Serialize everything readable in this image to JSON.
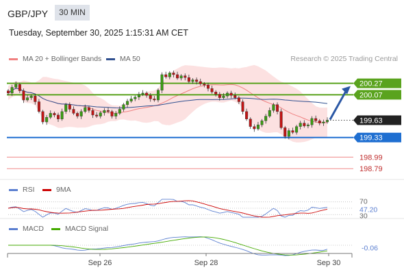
{
  "header": {
    "symbol": "GBP/JPY",
    "timeframe": "30 MIN",
    "timestamp": "Tuesday, September 30, 2025 1:15:31 AM CET"
  },
  "legend": {
    "ma20": {
      "label": "MA 20 + Bollinger Bands",
      "color": "#f08080"
    },
    "ma50": {
      "label": "MA 50",
      "color": "#2f4f8f"
    },
    "rsi": {
      "label": "RSI",
      "color": "#5b7fd0"
    },
    "rsi9": {
      "label": "9MA",
      "color": "#cc0000"
    },
    "macd": {
      "label": "MACD",
      "color": "#5b7fd0"
    },
    "macd_signal": {
      "label": "MACD Signal",
      "color": "#44aa00"
    }
  },
  "copyright": "Research © 2025 Trading Central",
  "chart_data": {
    "type": "candlestick",
    "price": {
      "ylim": [
        198.65,
        200.55
      ],
      "current": "199.63",
      "levels": [
        {
          "value": 200.27,
          "label": "200.27",
          "kind": "resistance",
          "color": "#5aa31e"
        },
        {
          "value": 200.07,
          "label": "200.07",
          "kind": "resistance",
          "color": "#5aa31e"
        },
        {
          "value": 199.33,
          "label": "199.33",
          "kind": "pivot",
          "color": "#1f6fd1"
        },
        {
          "value": 198.99,
          "label": "198.99",
          "kind": "support",
          "color": "#f08a8a"
        },
        {
          "value": 198.79,
          "label": "198.79",
          "kind": "support",
          "color": "#f08a8a"
        }
      ],
      "close": [
        200.1,
        200.2,
        200.25,
        200.14,
        199.98,
        200.02,
        200.05,
        199.95,
        199.78,
        199.6,
        199.68,
        199.75,
        199.72,
        199.65,
        199.78,
        199.9,
        199.82,
        199.75,
        199.7,
        199.78,
        199.85,
        199.8,
        199.72,
        199.7,
        199.76,
        199.8,
        199.78,
        199.7,
        199.75,
        199.82,
        199.9,
        199.96,
        200.0,
        200.03,
        200.08,
        200.1,
        200.06,
        200.0,
        199.98,
        200.15,
        200.42,
        200.38,
        200.45,
        200.42,
        200.36,
        200.4,
        200.37,
        200.3,
        200.33,
        200.3,
        200.26,
        200.24,
        200.18,
        200.12,
        200.08,
        200.02,
        200.05,
        200.1,
        200.06,
        200.02,
        199.95,
        199.78,
        199.65,
        199.52,
        199.48,
        199.55,
        199.62,
        199.7,
        199.8,
        199.9,
        199.78,
        199.5,
        199.35,
        199.45,
        199.42,
        199.52,
        199.58,
        199.53,
        199.55,
        199.66,
        199.62,
        199.58,
        199.6,
        199.63
      ],
      "ma20_label_color": "#f08080"
    },
    "rsi": {
      "label_values": [
        "70",
        "47.20",
        "30"
      ],
      "current": "47.20"
    },
    "macd": {
      "current": "-0.06"
    },
    "x_ticks": [
      "Sep 26",
      "Sep 28",
      "Sep 30"
    ]
  }
}
